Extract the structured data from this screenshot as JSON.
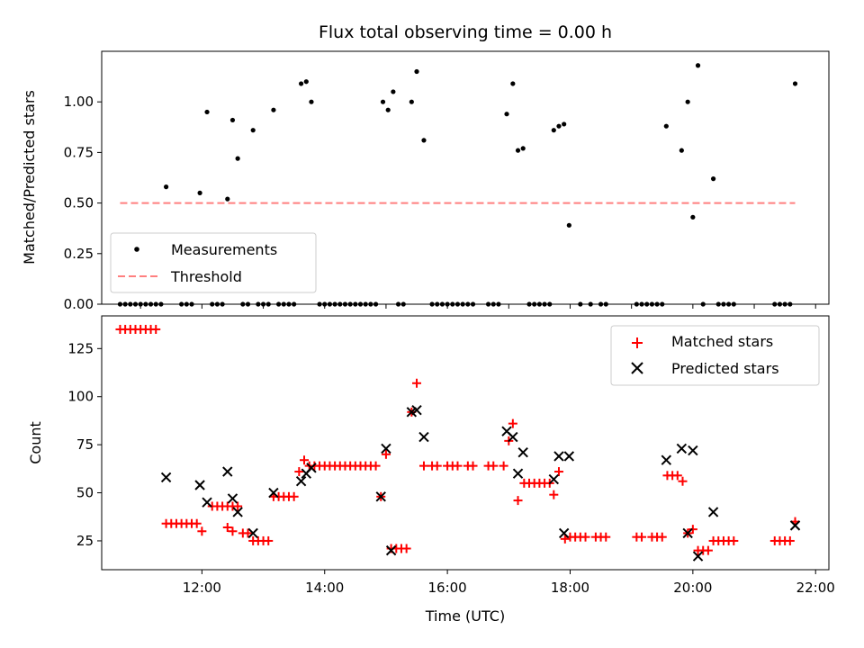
{
  "title": "Flux total observing time = 0.00 h",
  "xlabel": "Time (UTC)",
  "x_ticks": [
    "12:00",
    "14:00",
    "16:00",
    "18:00",
    "20:00",
    "22:00"
  ],
  "colors": {
    "measurements": "#000000",
    "threshold": "#ff7f7f",
    "matched": "#ff0000",
    "predicted": "#000000"
  },
  "chart_data": [
    {
      "type": "scatter",
      "ylabel": "Matched/Predicted stars",
      "xlim": [
        "10:22",
        "22:13"
      ],
      "ylim": [
        0,
        1.25
      ],
      "y_ticks": [
        "0.00",
        "0.25",
        "0.50",
        "0.75",
        "1.00"
      ],
      "legend": {
        "placement": "lower-left",
        "entries": [
          "Measurements",
          "Threshold"
        ]
      },
      "threshold": {
        "name": "Threshold",
        "value": 0.5,
        "x": [
          "10:40",
          "21:40"
        ]
      },
      "series": [
        {
          "name": "Measurements",
          "points": [
            [
              "11:25",
              0.58
            ],
            [
              "11:58",
              0.55
            ],
            [
              "12:05",
              0.95
            ],
            [
              "12:25",
              0.52
            ],
            [
              "12:30",
              0.91
            ],
            [
              "12:35",
              0.72
            ],
            [
              "12:50",
              0.86
            ],
            [
              "13:10",
              0.96
            ],
            [
              "13:37",
              1.09
            ],
            [
              "13:42",
              1.1
            ],
            [
              "13:47",
              1.0
            ],
            [
              "14:57",
              1.0
            ],
            [
              "15:02",
              0.96
            ],
            [
              "15:07",
              1.05
            ],
            [
              "15:25",
              1.0
            ],
            [
              "15:30",
              1.15
            ],
            [
              "15:37",
              0.81
            ],
            [
              "16:58",
              0.94
            ],
            [
              "17:04",
              1.09
            ],
            [
              "17:09",
              0.76
            ],
            [
              "17:14",
              0.77
            ],
            [
              "17:44",
              0.86
            ],
            [
              "17:49",
              0.88
            ],
            [
              "17:54",
              0.89
            ],
            [
              "17:59",
              0.39
            ],
            [
              "19:34",
              0.88
            ],
            [
              "19:49",
              0.76
            ],
            [
              "19:55",
              1.0
            ],
            [
              "20:00",
              0.43
            ],
            [
              "20:05",
              1.18
            ],
            [
              "20:20",
              0.62
            ],
            [
              "21:40",
              1.09
            ],
            [
              "10:40",
              0
            ],
            [
              "10:45",
              0
            ],
            [
              "10:50",
              0
            ],
            [
              "10:55",
              0
            ],
            [
              "11:00",
              0
            ],
            [
              "11:05",
              0
            ],
            [
              "11:10",
              0
            ],
            [
              "11:15",
              0
            ],
            [
              "11:20",
              0
            ],
            [
              "11:40",
              0
            ],
            [
              "11:45",
              0
            ],
            [
              "11:50",
              0
            ],
            [
              "12:10",
              0
            ],
            [
              "12:15",
              0
            ],
            [
              "12:20",
              0
            ],
            [
              "12:40",
              0
            ],
            [
              "12:45",
              0
            ],
            [
              "12:55",
              0
            ],
            [
              "13:00",
              0
            ],
            [
              "13:05",
              0
            ],
            [
              "13:15",
              0
            ],
            [
              "13:20",
              0
            ],
            [
              "13:25",
              0
            ],
            [
              "13:30",
              0
            ],
            [
              "13:55",
              0
            ],
            [
              "14:00",
              0
            ],
            [
              "14:05",
              0
            ],
            [
              "14:10",
              0
            ],
            [
              "14:15",
              0
            ],
            [
              "14:20",
              0
            ],
            [
              "14:25",
              0
            ],
            [
              "14:30",
              0
            ],
            [
              "14:35",
              0
            ],
            [
              "14:40",
              0
            ],
            [
              "14:45",
              0
            ],
            [
              "14:50",
              0
            ],
            [
              "15:12",
              0
            ],
            [
              "15:17",
              0
            ],
            [
              "15:45",
              0
            ],
            [
              "15:50",
              0
            ],
            [
              "15:55",
              0
            ],
            [
              "16:00",
              0
            ],
            [
              "16:05",
              0
            ],
            [
              "16:10",
              0
            ],
            [
              "16:15",
              0
            ],
            [
              "16:20",
              0
            ],
            [
              "16:25",
              0
            ],
            [
              "16:40",
              0
            ],
            [
              "16:45",
              0
            ],
            [
              "16:50",
              0
            ],
            [
              "17:20",
              0
            ],
            [
              "17:25",
              0
            ],
            [
              "17:30",
              0
            ],
            [
              "17:35",
              0
            ],
            [
              "17:40",
              0
            ],
            [
              "18:10",
              0
            ],
            [
              "18:20",
              0
            ],
            [
              "18:30",
              0
            ],
            [
              "18:35",
              0
            ],
            [
              "19:05",
              0
            ],
            [
              "19:10",
              0
            ],
            [
              "19:15",
              0
            ],
            [
              "19:20",
              0
            ],
            [
              "19:25",
              0
            ],
            [
              "19:30",
              0
            ],
            [
              "20:10",
              0
            ],
            [
              "20:25",
              0
            ],
            [
              "20:30",
              0
            ],
            [
              "20:35",
              0
            ],
            [
              "20:40",
              0
            ],
            [
              "21:20",
              0
            ],
            [
              "21:25",
              0
            ],
            [
              "21:30",
              0
            ],
            [
              "21:35",
              0
            ]
          ]
        }
      ]
    },
    {
      "type": "scatter",
      "ylabel": "Count",
      "xlim": [
        "10:22",
        "22:13"
      ],
      "ylim": [
        10,
        142
      ],
      "y_ticks": [
        "25",
        "50",
        "75",
        "100",
        "125"
      ],
      "legend": {
        "placement": "top-right",
        "entries": [
          "Matched stars",
          "Predicted stars"
        ]
      },
      "series": [
        {
          "name": "Matched stars",
          "points": [
            [
              "10:40",
              135
            ],
            [
              "10:45",
              135
            ],
            [
              "10:50",
              135
            ],
            [
              "10:55",
              135
            ],
            [
              "11:00",
              135
            ],
            [
              "11:05",
              135
            ],
            [
              "11:10",
              135
            ],
            [
              "11:15",
              135
            ],
            [
              "11:25",
              34
            ],
            [
              "11:30",
              34
            ],
            [
              "11:35",
              34
            ],
            [
              "11:40",
              34
            ],
            [
              "11:45",
              34
            ],
            [
              "11:50",
              34
            ],
            [
              "11:55",
              34
            ],
            [
              "12:00",
              30
            ],
            [
              "12:10",
              43
            ],
            [
              "12:15",
              43
            ],
            [
              "12:20",
              43
            ],
            [
              "12:25",
              43
            ],
            [
              "12:30",
              43
            ],
            [
              "12:35",
              43
            ],
            [
              "12:25",
              32
            ],
            [
              "12:30",
              30
            ],
            [
              "12:40",
              29
            ],
            [
              "12:45",
              29
            ],
            [
              "12:50",
              25
            ],
            [
              "12:55",
              25
            ],
            [
              "13:00",
              25
            ],
            [
              "13:05",
              25
            ],
            [
              "13:10",
              48
            ],
            [
              "13:15",
              48
            ],
            [
              "13:20",
              48
            ],
            [
              "13:25",
              48
            ],
            [
              "13:30",
              48
            ],
            [
              "13:35",
              61
            ],
            [
              "13:40",
              67
            ],
            [
              "13:45",
              64
            ],
            [
              "13:50",
              64
            ],
            [
              "13:55",
              64
            ],
            [
              "14:00",
              64
            ],
            [
              "14:05",
              64
            ],
            [
              "14:10",
              64
            ],
            [
              "14:15",
              64
            ],
            [
              "14:20",
              64
            ],
            [
              "14:25",
              64
            ],
            [
              "14:30",
              64
            ],
            [
              "14:35",
              64
            ],
            [
              "14:40",
              64
            ],
            [
              "14:45",
              64
            ],
            [
              "14:50",
              64
            ],
            [
              "14:55",
              48
            ],
            [
              "15:00",
              70
            ],
            [
              "15:05",
              21
            ],
            [
              "15:10",
              21
            ],
            [
              "15:15",
              21
            ],
            [
              "15:20",
              21
            ],
            [
              "15:25",
              92
            ],
            [
              "15:30",
              107
            ],
            [
              "15:37",
              64
            ],
            [
              "15:45",
              64
            ],
            [
              "15:50",
              64
            ],
            [
              "16:00",
              64
            ],
            [
              "16:05",
              64
            ],
            [
              "16:10",
              64
            ],
            [
              "16:20",
              64
            ],
            [
              "16:25",
              64
            ],
            [
              "16:40",
              64
            ],
            [
              "16:45",
              64
            ],
            [
              "16:55",
              64
            ],
            [
              "17:00",
              77
            ],
            [
              "17:04",
              86
            ],
            [
              "17:09",
              46
            ],
            [
              "17:15",
              55
            ],
            [
              "17:20",
              55
            ],
            [
              "17:25",
              55
            ],
            [
              "17:30",
              55
            ],
            [
              "17:35",
              55
            ],
            [
              "17:40",
              55
            ],
            [
              "17:44",
              49
            ],
            [
              "17:49",
              61
            ],
            [
              "17:55",
              26
            ],
            [
              "18:00",
              27
            ],
            [
              "18:05",
              27
            ],
            [
              "18:10",
              27
            ],
            [
              "18:15",
              27
            ],
            [
              "18:25",
              27
            ],
            [
              "18:30",
              27
            ],
            [
              "18:35",
              27
            ],
            [
              "19:05",
              27
            ],
            [
              "19:10",
              27
            ],
            [
              "19:20",
              27
            ],
            [
              "19:25",
              27
            ],
            [
              "19:30",
              27
            ],
            [
              "19:35",
              59
            ],
            [
              "19:40",
              59
            ],
            [
              "19:45",
              59
            ],
            [
              "19:50",
              56
            ],
            [
              "19:55",
              29
            ],
            [
              "20:00",
              31
            ],
            [
              "20:05",
              20
            ],
            [
              "20:10",
              20
            ],
            [
              "20:15",
              20
            ],
            [
              "20:20",
              25
            ],
            [
              "20:25",
              25
            ],
            [
              "20:30",
              25
            ],
            [
              "20:35",
              25
            ],
            [
              "20:40",
              25
            ],
            [
              "21:20",
              25
            ],
            [
              "21:25",
              25
            ],
            [
              "21:30",
              25
            ],
            [
              "21:35",
              25
            ],
            [
              "21:40",
              35
            ]
          ]
        },
        {
          "name": "Predicted stars",
          "points": [
            [
              "11:25",
              58
            ],
            [
              "11:58",
              54
            ],
            [
              "12:05",
              45
            ],
            [
              "12:25",
              61
            ],
            [
              "12:30",
              47
            ],
            [
              "12:35",
              40
            ],
            [
              "12:50",
              29
            ],
            [
              "13:10",
              50
            ],
            [
              "13:37",
              56
            ],
            [
              "13:42",
              60
            ],
            [
              "13:47",
              63
            ],
            [
              "14:55",
              48
            ],
            [
              "15:00",
              73
            ],
            [
              "15:05",
              20
            ],
            [
              "15:25",
              92
            ],
            [
              "15:30",
              93
            ],
            [
              "15:37",
              79
            ],
            [
              "16:58",
              82
            ],
            [
              "17:04",
              79
            ],
            [
              "17:09",
              60
            ],
            [
              "17:14",
              71
            ],
            [
              "17:44",
              57
            ],
            [
              "17:49",
              69
            ],
            [
              "17:54",
              29
            ],
            [
              "17:59",
              69
            ],
            [
              "19:34",
              67
            ],
            [
              "19:49",
              73
            ],
            [
              "19:55",
              29
            ],
            [
              "20:00",
              72
            ],
            [
              "20:05",
              17
            ],
            [
              "20:20",
              40
            ],
            [
              "21:40",
              33
            ]
          ]
        }
      ]
    }
  ]
}
